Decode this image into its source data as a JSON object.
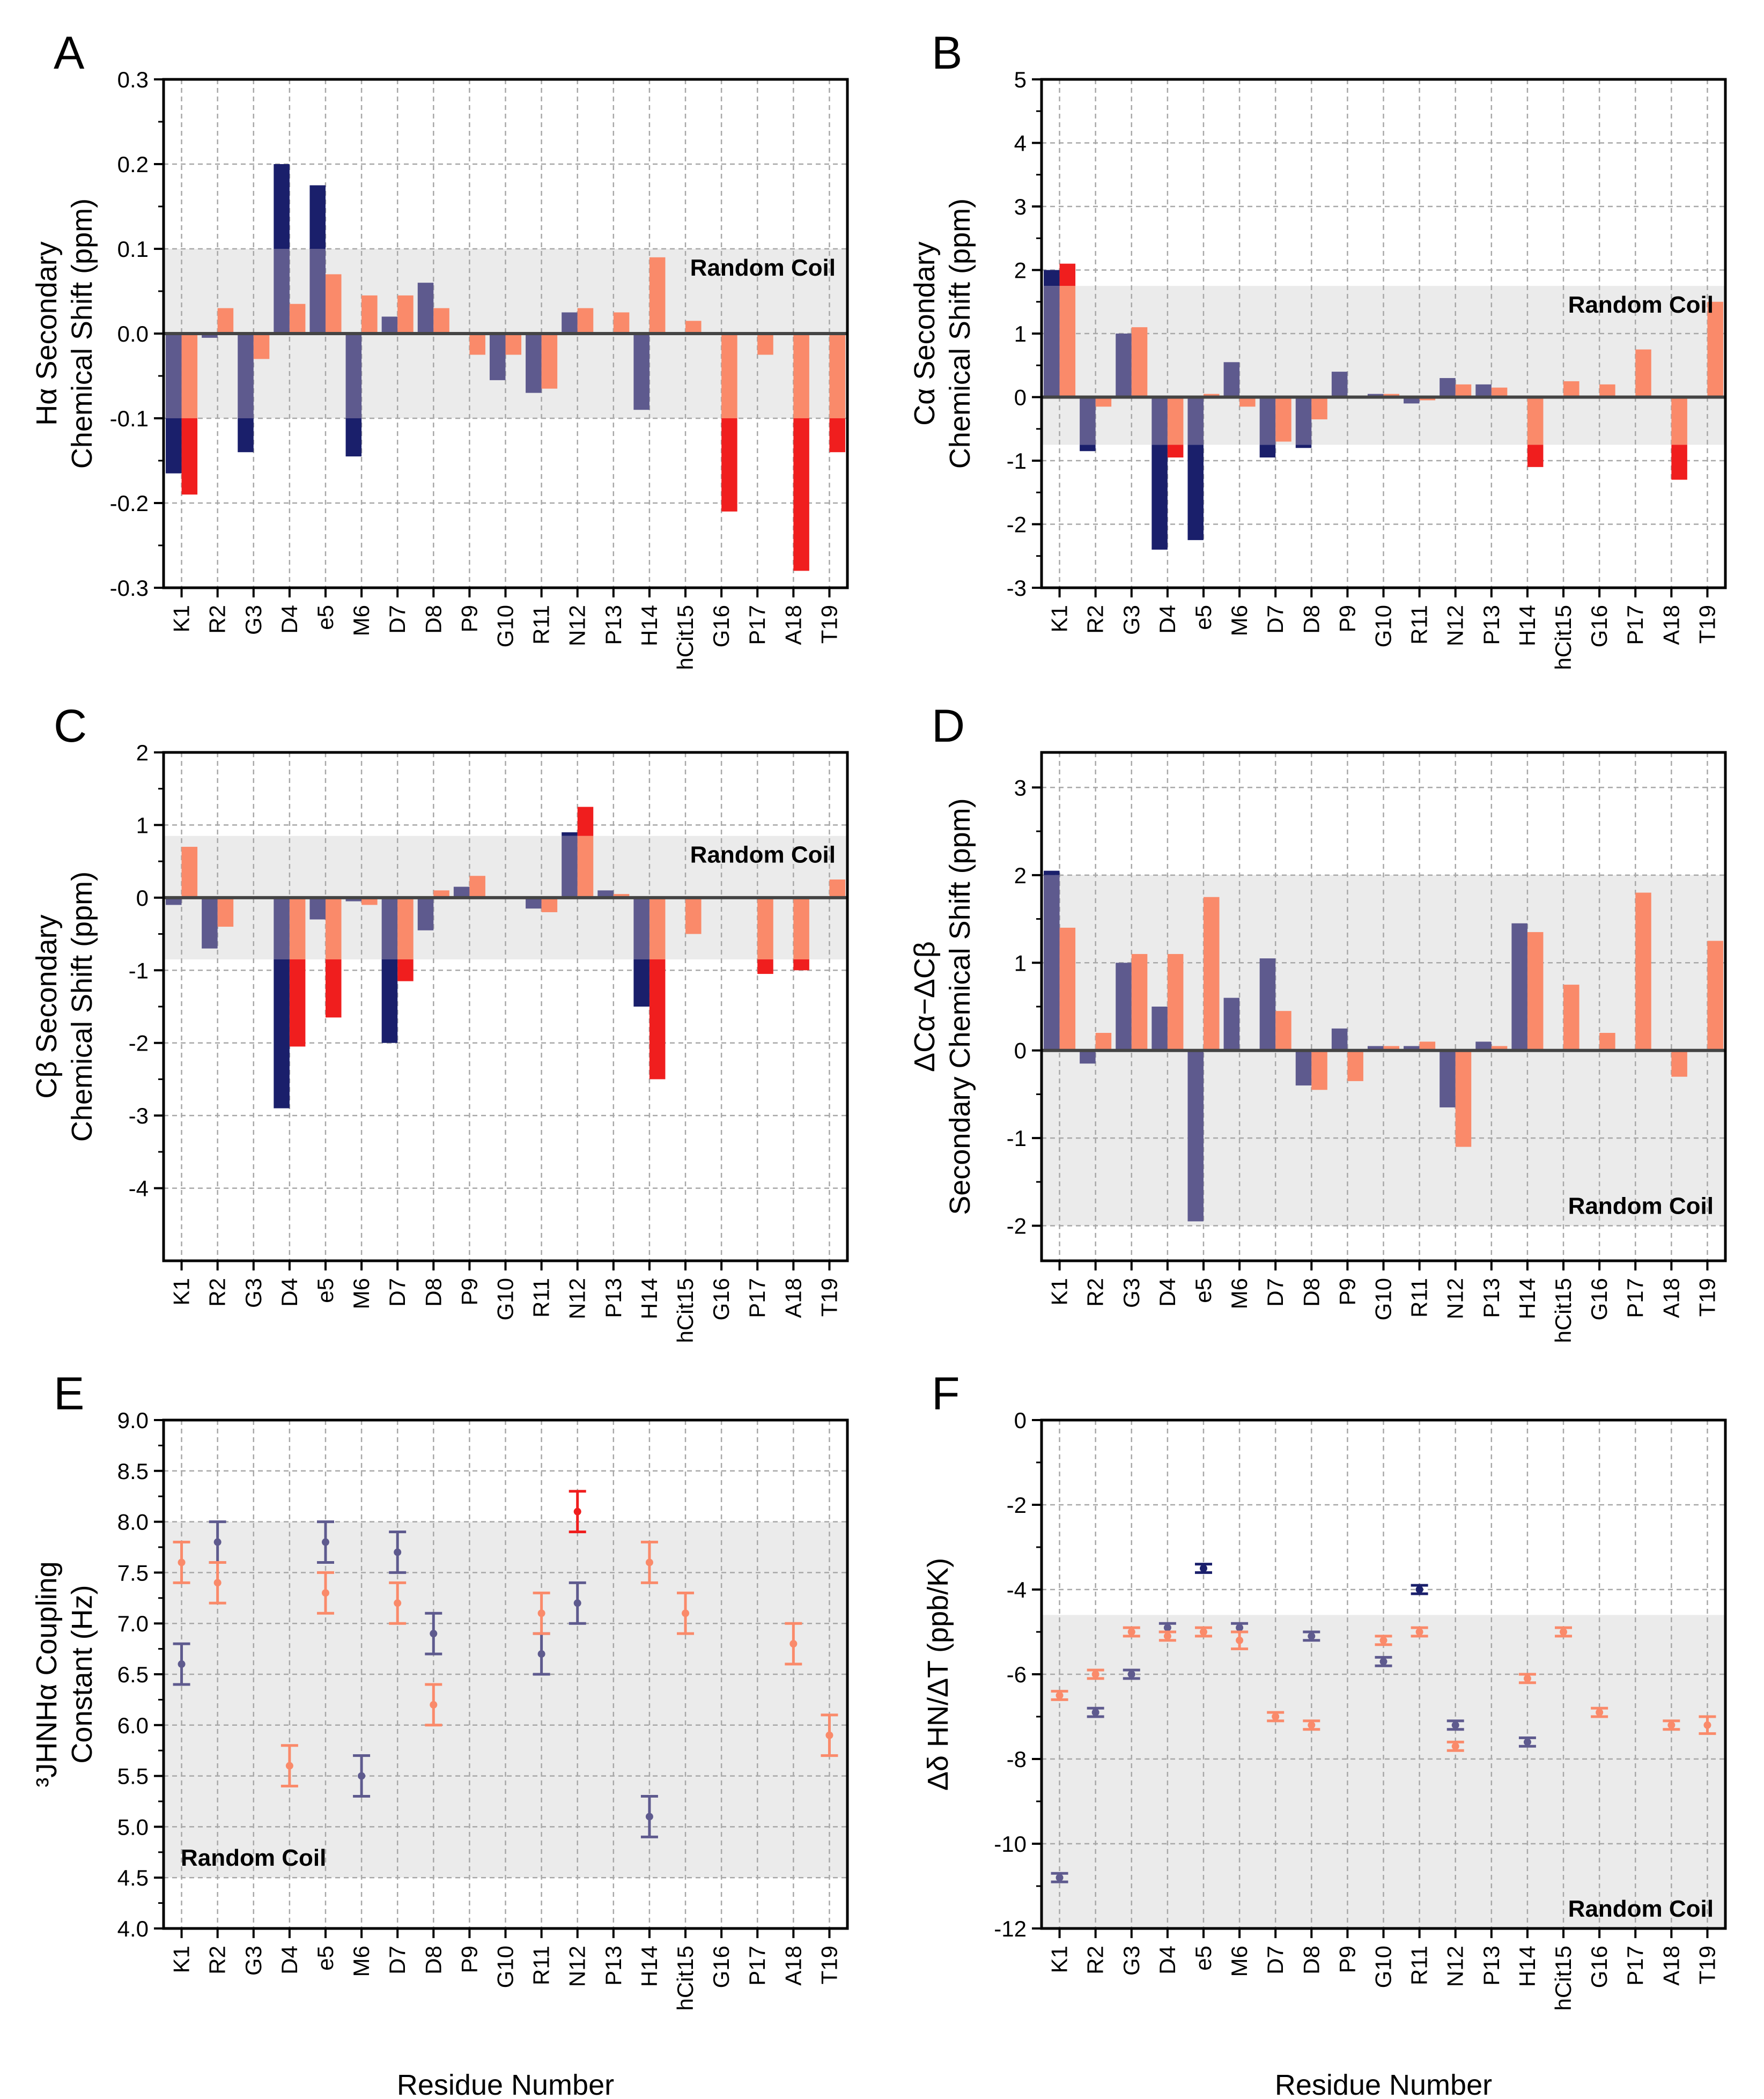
{
  "colors": {
    "blue": "#5E5A8E",
    "blue_dark": "#1A1F6B",
    "orange": "#FA8A6A",
    "red": "#F01E1E",
    "band": "#EBEBEB",
    "grid": "#A8A8A8"
  },
  "chart_data": [
    {
      "panel": "A",
      "type": "bar",
      "categories": [
        "K1",
        "R2",
        "G3",
        "D4",
        "e5",
        "M6",
        "D7",
        "D8",
        "P9",
        "G10",
        "R11",
        "N12",
        "P13",
        "H14",
        "hCit15",
        "G16",
        "P17",
        "A18",
        "T19"
      ],
      "ylabel": [
        "Hα Secondary",
        "Chemical Shift (ppm)"
      ],
      "xlabel": "",
      "ylim": [
        -0.3,
        0.3
      ],
      "yticks": [
        -0.3,
        -0.2,
        -0.1,
        0.0,
        0.1,
        0.2,
        0.3
      ],
      "ytick_labels": [
        "-0.3",
        "-0.2",
        "-0.1",
        "0.0",
        "0.1",
        "0.2",
        "0.3"
      ],
      "band": [
        -0.1,
        0.1
      ],
      "band_label": "Random Coil",
      "band_label_anchor": "top-right",
      "series": [
        {
          "name": "blue",
          "values": [
            -0.165,
            -0.005,
            -0.14,
            0.2,
            0.175,
            -0.145,
            0.02,
            0.06,
            null,
            -0.055,
            -0.07,
            0.025,
            null,
            -0.09,
            null,
            null,
            null,
            null,
            null
          ]
        },
        {
          "name": "orange",
          "values": [
            -0.19,
            0.03,
            -0.03,
            0.035,
            0.07,
            0.045,
            0.045,
            0.03,
            -0.025,
            -0.025,
            -0.065,
            0.03,
            0.025,
            0.09,
            0.015,
            -0.21,
            -0.025,
            -0.28,
            -0.14
          ]
        }
      ]
    },
    {
      "panel": "B",
      "type": "bar",
      "categories": [
        "K1",
        "R2",
        "G3",
        "D4",
        "e5",
        "M6",
        "D7",
        "D8",
        "P9",
        "G10",
        "R11",
        "N12",
        "P13",
        "H14",
        "hCit15",
        "G16",
        "P17",
        "A18",
        "T19"
      ],
      "ylabel": [
        "Cα Secondary",
        "Chemical Shift (ppm)"
      ],
      "xlabel": "",
      "ylim": [
        -3,
        5
      ],
      "yticks": [
        -3,
        -2,
        -1,
        0,
        1,
        2,
        3,
        4,
        5
      ],
      "ytick_labels": [
        "-3",
        "-2",
        "-1",
        "0",
        "1",
        "2",
        "3",
        "4",
        "5"
      ],
      "band": [
        -0.75,
        1.75
      ],
      "band_label": "Random Coil",
      "band_label_anchor": "top-right",
      "series": [
        {
          "name": "blue",
          "values": [
            2.0,
            -0.85,
            1.0,
            -2.4,
            -2.25,
            0.55,
            -0.95,
            -0.8,
            0.4,
            0.05,
            -0.1,
            0.3,
            0.2,
            null,
            null,
            null,
            null,
            null,
            null
          ]
        },
        {
          "name": "orange",
          "values": [
            2.1,
            -0.15,
            1.1,
            -0.95,
            0.05,
            -0.15,
            -0.7,
            -0.35,
            0.0,
            0.05,
            -0.05,
            0.2,
            0.15,
            -1.1,
            0.25,
            0.2,
            0.75,
            -1.3,
            1.5
          ]
        }
      ]
    },
    {
      "panel": "C",
      "type": "bar",
      "categories": [
        "K1",
        "R2",
        "G3",
        "D4",
        "e5",
        "M6",
        "D7",
        "D8",
        "P9",
        "G10",
        "R11",
        "N12",
        "P13",
        "H14",
        "hCit15",
        "G16",
        "P17",
        "A18",
        "T19"
      ],
      "ylabel": [
        "Cβ Secondary",
        "Chemical Shift (ppm)"
      ],
      "xlabel": "",
      "ylim": [
        -5,
        2
      ],
      "yticks": [
        -4,
        -3,
        -2,
        -1,
        0,
        1,
        2
      ],
      "ytick_labels": [
        "-4",
        "-3",
        "-2",
        "-1",
        "0",
        "1",
        "2"
      ],
      "band": [
        -0.85,
        0.85
      ],
      "band_label": "Random Coil",
      "band_label_anchor": "top-right",
      "series": [
        {
          "name": "blue",
          "values": [
            -0.1,
            -0.7,
            null,
            -2.9,
            -0.3,
            -0.05,
            -2.0,
            -0.45,
            0.15,
            null,
            -0.15,
            0.9,
            0.1,
            -1.5,
            null,
            null,
            null,
            null,
            null
          ]
        },
        {
          "name": "orange",
          "values": [
            0.7,
            -0.4,
            null,
            -2.05,
            -1.65,
            -0.1,
            -1.15,
            0.1,
            0.3,
            null,
            -0.2,
            1.25,
            0.05,
            -2.5,
            -0.5,
            null,
            -1.05,
            -1.0,
            0.25
          ]
        }
      ]
    },
    {
      "panel": "D",
      "type": "bar",
      "categories": [
        "K1",
        "R2",
        "G3",
        "D4",
        "e5",
        "M6",
        "D7",
        "D8",
        "P9",
        "G10",
        "R11",
        "N12",
        "P13",
        "H14",
        "hCit15",
        "G16",
        "P17",
        "A18",
        "T19"
      ],
      "ylabel": [
        "ΔCα−ΔCβ",
        "Secondary Chemical Shift (ppm)"
      ],
      "xlabel": "",
      "ylim": [
        -2.4,
        3.4
      ],
      "yticks": [
        -2,
        -1,
        0,
        1,
        2,
        3
      ],
      "ytick_labels": [
        "-2",
        "-1",
        "0",
        "1",
        "2",
        "3"
      ],
      "band": [
        -2.0,
        2.0
      ],
      "band_label": "Random Coil",
      "band_label_anchor": "bottom-right",
      "series": [
        {
          "name": "blue",
          "values": [
            2.05,
            -0.15,
            1.0,
            0.5,
            -1.95,
            0.6,
            1.05,
            -0.4,
            0.25,
            0.05,
            0.05,
            -0.65,
            0.1,
            1.45,
            null,
            null,
            null,
            null,
            null
          ]
        },
        {
          "name": "orange",
          "values": [
            1.4,
            0.2,
            1.1,
            1.1,
            1.75,
            0.0,
            0.45,
            -0.45,
            -0.35,
            0.05,
            0.1,
            -1.1,
            0.05,
            1.35,
            0.75,
            0.2,
            1.8,
            -0.3,
            1.25
          ]
        }
      ]
    },
    {
      "panel": "E",
      "type": "scatter",
      "categories": [
        "K1",
        "R2",
        "G3",
        "D4",
        "e5",
        "M6",
        "D7",
        "D8",
        "P9",
        "G10",
        "R11",
        "N12",
        "P13",
        "H14",
        "hCit15",
        "G16",
        "P17",
        "A18",
        "T19"
      ],
      "ylabel": [
        "³JHNHα Coupling",
        "Constant (Hz)"
      ],
      "xlabel": "Residue Number",
      "ylim": [
        4.0,
        9.0
      ],
      "yticks": [
        4.0,
        4.5,
        5.0,
        5.5,
        6.0,
        6.5,
        7.0,
        7.5,
        8.0,
        8.5,
        9.0
      ],
      "ytick_labels": [
        "4.0",
        "4.5",
        "5.0",
        "5.5",
        "6.0",
        "6.5",
        "7.0",
        "7.5",
        "8.0",
        "8.5",
        "9.0"
      ],
      "band": [
        4.5,
        8.0
      ],
      "band_label": "Random Coil",
      "band_label_anchor": "bottom-left",
      "series": [
        {
          "name": "blue",
          "values": [
            6.6,
            7.8,
            null,
            null,
            7.8,
            5.5,
            7.7,
            6.9,
            null,
            null,
            6.7,
            7.2,
            null,
            5.1,
            null,
            null,
            null,
            null,
            null
          ],
          "errors": [
            0.2,
            0.2,
            null,
            null,
            0.2,
            0.2,
            0.2,
            0.2,
            null,
            null,
            0.2,
            0.2,
            null,
            0.2,
            null,
            null,
            null,
            null,
            null
          ]
        },
        {
          "name": "orange",
          "values": [
            7.6,
            7.4,
            null,
            5.6,
            7.3,
            null,
            7.2,
            6.2,
            null,
            null,
            7.1,
            8.1,
            null,
            7.6,
            7.1,
            null,
            null,
            6.8,
            5.9
          ],
          "errors": [
            0.2,
            0.2,
            null,
            0.2,
            0.2,
            null,
            0.2,
            0.2,
            null,
            null,
            0.2,
            0.2,
            null,
            0.2,
            0.2,
            null,
            null,
            0.2,
            0.2
          ]
        }
      ]
    },
    {
      "panel": "F",
      "type": "scatter",
      "categories": [
        "K1",
        "R2",
        "G3",
        "D4",
        "e5",
        "M6",
        "D7",
        "D8",
        "P9",
        "G10",
        "R11",
        "N12",
        "P13",
        "H14",
        "hCit15",
        "G16",
        "P17",
        "A18",
        "T19"
      ],
      "ylabel": [
        "Δδ HN/ΔT (ppb/K)"
      ],
      "xlabel": "Residue Number",
      "ylim": [
        -12,
        0
      ],
      "yticks": [
        -12,
        -10,
        -8,
        -6,
        -4,
        -2,
        0
      ],
      "ytick_labels": [
        "-12",
        "-10",
        "-8",
        "-6",
        "-4",
        "-2",
        "0"
      ],
      "band": [
        -12,
        -4.6
      ],
      "band_label": "Random Coil",
      "band_label_anchor": "bottom-right",
      "series": [
        {
          "name": "blue",
          "values": [
            -10.8,
            -6.9,
            -6.0,
            -4.9,
            -3.5,
            -4.9,
            null,
            -5.1,
            null,
            -5.7,
            -4.0,
            -7.2,
            null,
            -7.6,
            null,
            null,
            null,
            null,
            null
          ],
          "errors": [
            0.1,
            0.1,
            0.1,
            0.1,
            0.1,
            0.1,
            null,
            0.1,
            null,
            0.1,
            0.1,
            0.1,
            null,
            0.1,
            null,
            null,
            null,
            null,
            null
          ]
        },
        {
          "name": "orange",
          "values": [
            -6.5,
            -6.0,
            -5.0,
            -5.1,
            -5.0,
            -5.2,
            -7.0,
            -7.2,
            null,
            -5.2,
            -5.0,
            -7.7,
            null,
            -6.1,
            -5.0,
            -6.9,
            null,
            -7.2,
            -7.2
          ],
          "errors": [
            0.1,
            0.1,
            0.1,
            0.1,
            0.1,
            0.2,
            0.1,
            0.1,
            null,
            0.1,
            0.1,
            0.1,
            null,
            0.1,
            0.1,
            0.1,
            null,
            0.1,
            0.2
          ]
        }
      ]
    }
  ]
}
